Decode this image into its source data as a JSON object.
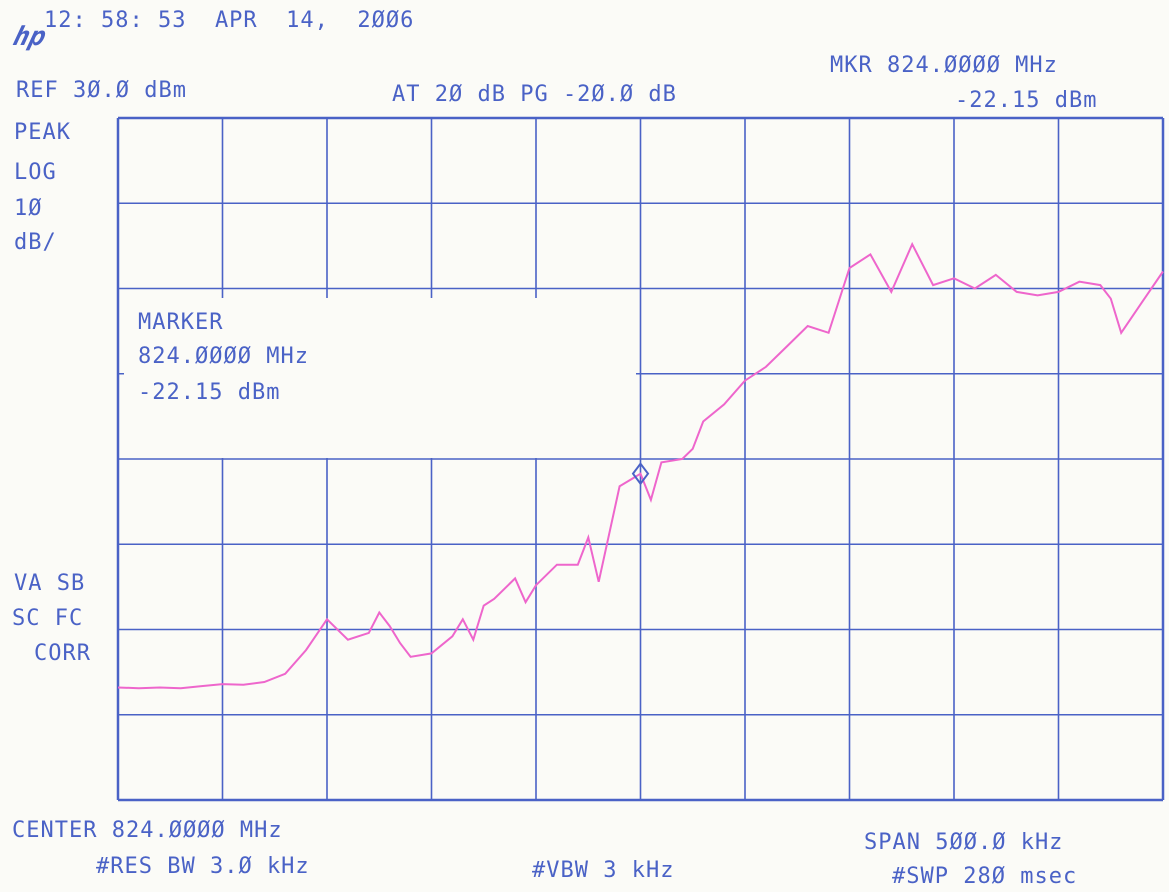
{
  "header": {
    "timestamp": "12: 58: 53  APR  14,  2ØØ6",
    "logo": "hp",
    "ref_level": "REF 3Ø.Ø dBm",
    "attenuation": "AT 2Ø dB PG -2Ø.Ø dB",
    "mkr_freq": "MKR 824.ØØØØ MHz",
    "mkr_level": "-22.15 dBm"
  },
  "left_panel": {
    "detector": "PEAK",
    "scale_type": "LOG",
    "scale_value": "1Ø",
    "scale_unit": "dB/",
    "flags_1": "VA SB",
    "flags_2": "SC FC",
    "flags_3": "CORR"
  },
  "marker_box": {
    "title": "MARKER",
    "freq": "824.ØØØØ MHz",
    "level": "-22.15 dBm"
  },
  "footer": {
    "center": "CENTER 824.ØØØØ MHz",
    "rbw": "#RES BW 3.Ø kHz",
    "vbw": "#VBW 3 kHz",
    "span": "SPAN 5ØØ.Ø kHz",
    "sweep": "#SWP 28Ø msec"
  },
  "colors": {
    "grid": "#4a62c6",
    "trace": "#ee66cc",
    "marker": "#4a62c6",
    "background": "#fbfbf7"
  },
  "chart_data": {
    "type": "line",
    "title": "",
    "xlabel": "",
    "ylabel": "",
    "x_unit": "MHz",
    "y_unit": "dBm",
    "xlim": [
      823.75,
      824.25
    ],
    "ylim": [
      -70,
      30
    ],
    "grid": true,
    "grid_divisions": {
      "x": 10,
      "y": 8
    },
    "series": [
      {
        "x": [
          823.75,
          823.76,
          823.77,
          823.78,
          823.79,
          823.8,
          823.81,
          823.82,
          823.83,
          823.84,
          823.85,
          823.86,
          823.87,
          823.875,
          823.88,
          823.885,
          823.89,
          823.9,
          823.91,
          823.915,
          823.92,
          823.925,
          823.93,
          823.94,
          823.945,
          823.95,
          823.96,
          823.97,
          823.975,
          823.98,
          823.99,
          824.0,
          824.005,
          824.01,
          824.02,
          824.025,
          824.03,
          824.04,
          824.05,
          824.06,
          824.07,
          824.08,
          824.09,
          824.1,
          824.11,
          824.12,
          824.13,
          824.14,
          824.15,
          824.16,
          824.17,
          824.18,
          824.19,
          824.2,
          824.21,
          824.22,
          824.225,
          824.23,
          824.24,
          824.25
        ],
        "y": [
          -53.5,
          -53.6,
          -53.5,
          -53.6,
          -53.3,
          -53.0,
          -53.1,
          -52.7,
          -51.5,
          -48.0,
          -43.5,
          -46.5,
          -45.5,
          -42.5,
          -44.5,
          -47.0,
          -49.0,
          -48.5,
          -46.0,
          -43.5,
          -46.5,
          -41.5,
          -40.5,
          -37.5,
          -41.0,
          -38.5,
          -35.5,
          -35.5,
          -31.5,
          -38.0,
          -24.0,
          -22.15,
          -26.0,
          -20.5,
          -20.0,
          -18.5,
          -14.5,
          -12.0,
          -8.5,
          -6.5,
          -3.5,
          -0.5,
          -1.5,
          8.0,
          10.0,
          4.5,
          11.5,
          5.5,
          6.5,
          5.0,
          7.0,
          4.5,
          4.0,
          4.5,
          6.0,
          5.5,
          3.5,
          -1.5,
          3.0,
          7.5
        ]
      }
    ],
    "marker": {
      "x": 824.0,
      "y": -22.15
    }
  }
}
